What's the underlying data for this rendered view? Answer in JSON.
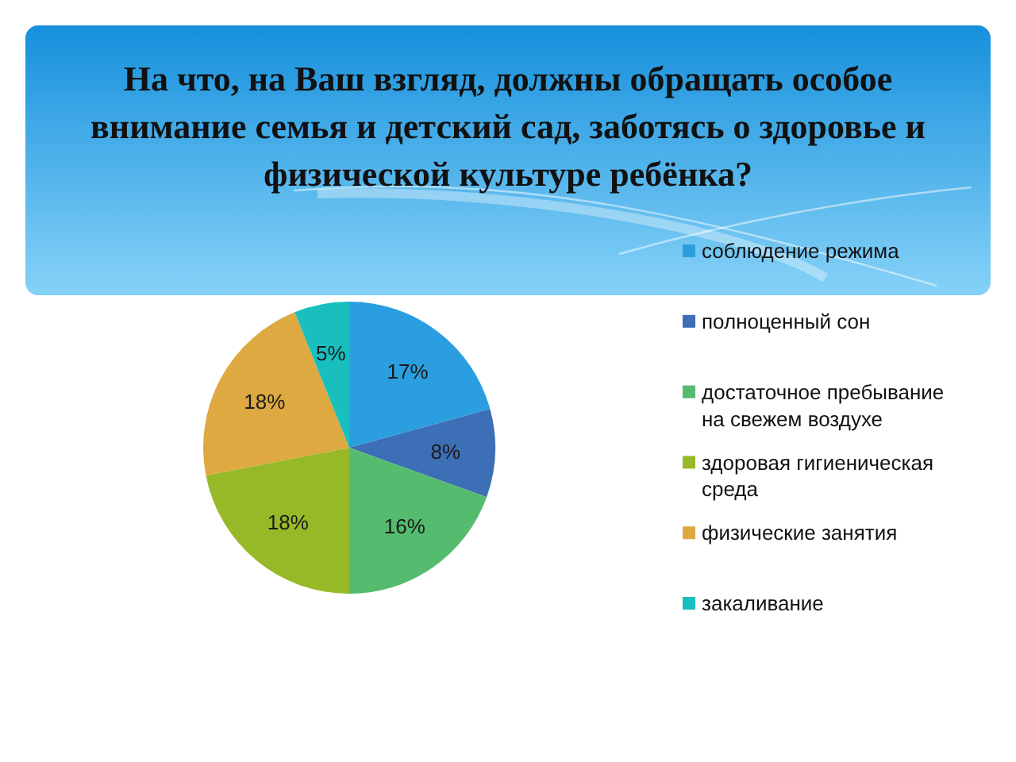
{
  "chart_data": {
    "type": "pie",
    "title": "На что, на Ваш взгляд, должны обращать особое внимание семья и детский сад, заботясь о здоровье и физической культуре ребёнка?",
    "categories": [
      "соблюдение режима",
      "полноценный сон",
      "достаточное пребывание на свежем воздухе",
      "здоровая гигиеническая среда",
      "физические занятия",
      "закаливание"
    ],
    "values": [
      17,
      8,
      16,
      18,
      18,
      5
    ],
    "colors": [
      "#2b9ee0",
      "#3c6fb5",
      "#55bb6e",
      "#98b927",
      "#dda940",
      "#19bfbf"
    ],
    "value_labels": [
      "17%",
      "8%",
      "16%",
      "18%",
      "18%",
      "5%"
    ],
    "legend": "right"
  }
}
